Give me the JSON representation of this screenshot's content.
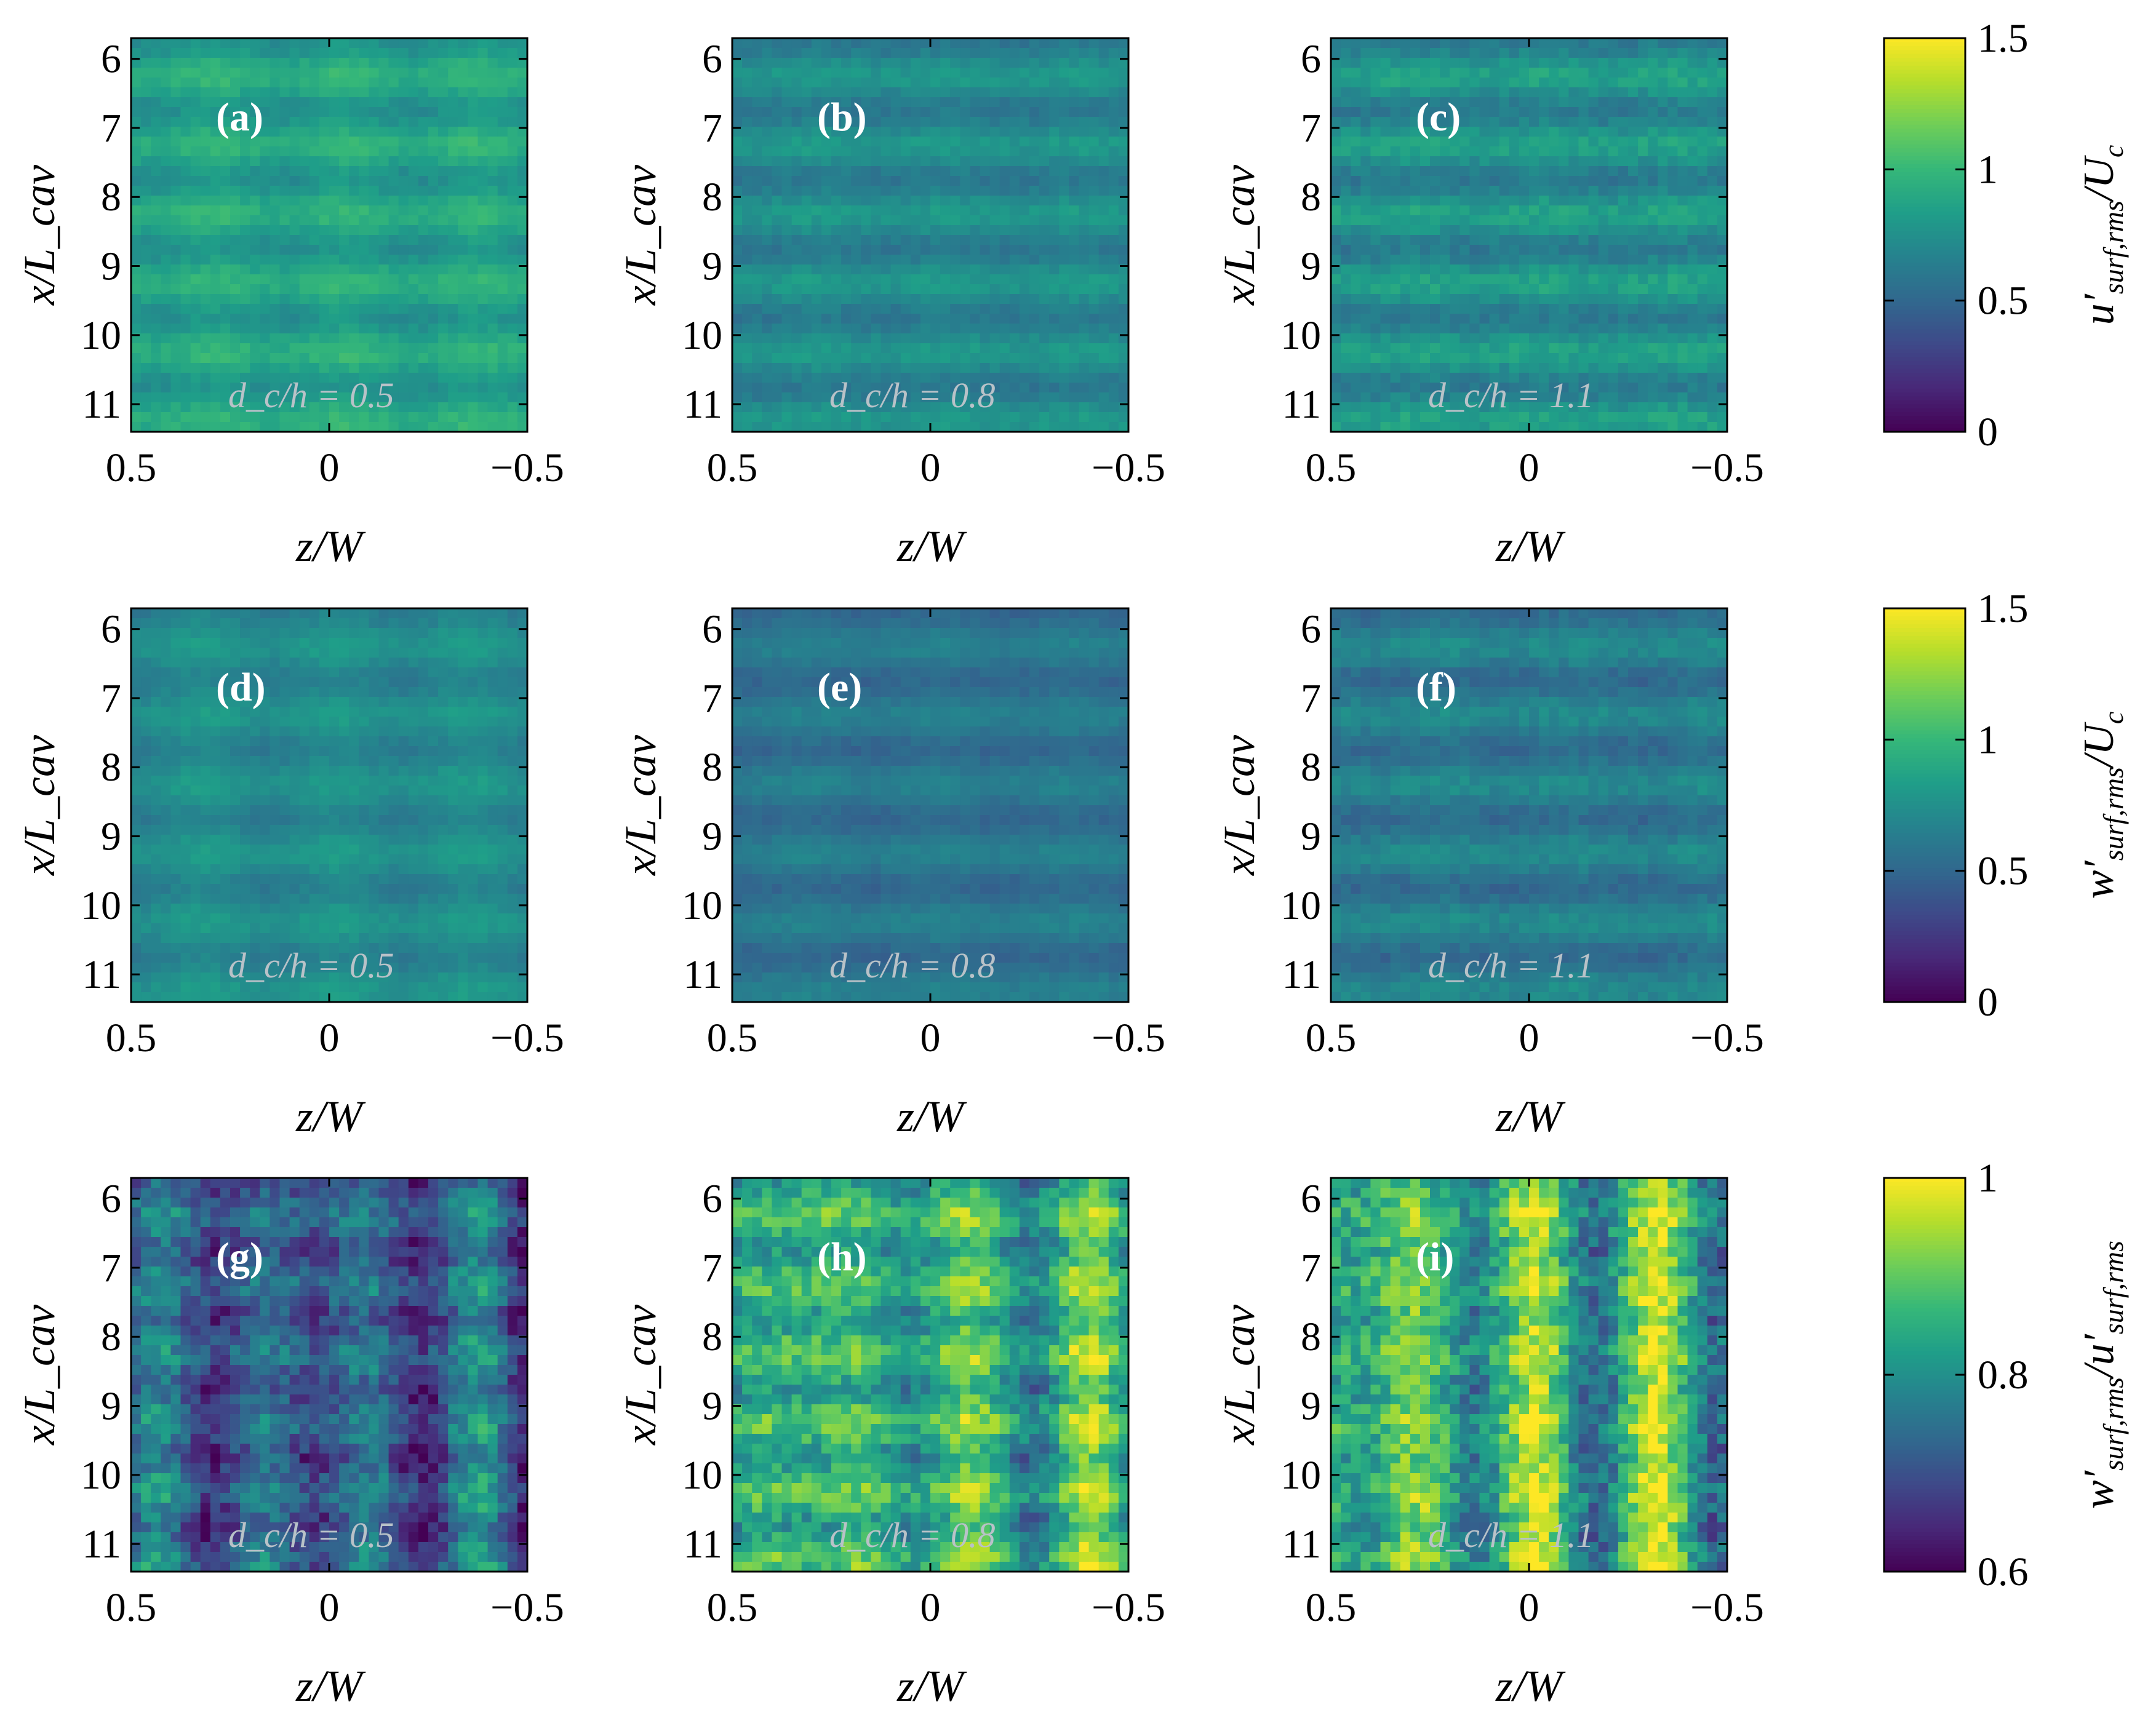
{
  "colors": {
    "viridis": [
      "#440154",
      "#482878",
      "#3e4989",
      "#31688e",
      "#26828e",
      "#1f9e89",
      "#35b779",
      "#6ece58",
      "#b5de2b",
      "#fde725"
    ]
  },
  "chart_data": [
    {
      "id": "a",
      "type": "heatmap",
      "letter": "(a)",
      "case_label": "d_c/h = 0.5",
      "dc_over_h": 0.5,
      "quantity": "u'_surf,rms/U_c",
      "row": 0,
      "col": 0,
      "base": 0.86,
      "bands": 0.1,
      "cols_amp": 0.04,
      "stripes": 0.0,
      "noise": 0.05,
      "xlabel": "z/W",
      "ylabel": "x/L_cav",
      "xticks": [
        "0.5",
        "0",
        "−0.5"
      ],
      "yticks": [
        "6",
        "7",
        "8",
        "9",
        "10",
        "11"
      ],
      "xlim": [
        0.5,
        -0.5
      ],
      "ylim": [
        5.7,
        11.4
      ]
    },
    {
      "id": "b",
      "type": "heatmap",
      "letter": "(b)",
      "case_label": "d_c/h = 0.8",
      "dc_over_h": 0.8,
      "quantity": "u'_surf,rms/U_c",
      "row": 0,
      "col": 1,
      "base": 0.7,
      "bands": 0.1,
      "cols_amp": 0.02,
      "stripes": 0.0,
      "noise": 0.05,
      "xlabel": "z/W",
      "ylabel": "x/L_cav",
      "xticks": [
        "0.5",
        "0",
        "−0.5"
      ],
      "yticks": [
        "6",
        "7",
        "8",
        "9",
        "10",
        "11"
      ],
      "xlim": [
        0.5,
        -0.5
      ],
      "ylim": [
        5.7,
        11.4
      ]
    },
    {
      "id": "c",
      "type": "heatmap",
      "letter": "(c)",
      "case_label": "d_c/h = 1.1",
      "dc_over_h": 1.1,
      "quantity": "u'_surf,rms/U_c",
      "row": 0,
      "col": 2,
      "base": 0.74,
      "bands": 0.12,
      "cols_amp": 0.02,
      "stripes": 0.0,
      "noise": 0.07,
      "xlabel": "z/W",
      "ylabel": "x/L_cav",
      "xticks": [
        "0.5",
        "0",
        "−0.5"
      ],
      "yticks": [
        "6",
        "7",
        "8",
        "9",
        "10",
        "11"
      ],
      "xlim": [
        0.5,
        -0.5
      ],
      "ylim": [
        5.7,
        11.4
      ]
    },
    {
      "id": "d",
      "type": "heatmap",
      "letter": "(d)",
      "case_label": "d_c/h = 0.5",
      "dc_over_h": 0.5,
      "quantity": "w'_surf,rms/U_c",
      "row": 1,
      "col": 0,
      "base": 0.72,
      "bands": 0.07,
      "cols_amp": 0.04,
      "stripes": 0.0,
      "noise": 0.04,
      "xlabel": "z/W",
      "ylabel": "x/L_cav",
      "xticks": [
        "0.5",
        "0",
        "−0.5"
      ],
      "yticks": [
        "6",
        "7",
        "8",
        "9",
        "10",
        "11"
      ],
      "xlim": [
        0.5,
        -0.5
      ],
      "ylim": [
        5.7,
        11.4
      ]
    },
    {
      "id": "e",
      "type": "heatmap",
      "letter": "(e)",
      "case_label": "d_c/h = 0.8",
      "dc_over_h": 0.8,
      "quantity": "w'_surf,rms/U_c",
      "row": 1,
      "col": 1,
      "base": 0.58,
      "bands": 0.08,
      "cols_amp": 0.02,
      "stripes": 0.0,
      "noise": 0.04,
      "xlabel": "z/W",
      "ylabel": "x/L_cav",
      "xticks": [
        "0.5",
        "0",
        "−0.5"
      ],
      "yticks": [
        "6",
        "7",
        "8",
        "9",
        "10",
        "11"
      ],
      "xlim": [
        0.5,
        -0.5
      ],
      "ylim": [
        5.7,
        11.4
      ]
    },
    {
      "id": "f",
      "type": "heatmap",
      "letter": "(f)",
      "case_label": "d_c/h = 1.1",
      "dc_over_h": 1.1,
      "quantity": "w'_surf,rms/U_c",
      "row": 1,
      "col": 2,
      "base": 0.62,
      "bands": 0.1,
      "cols_amp": 0.02,
      "stripes": 0.0,
      "noise": 0.06,
      "xlabel": "z/W",
      "ylabel": "x/L_cav",
      "xticks": [
        "0.5",
        "0",
        "−0.5"
      ],
      "yticks": [
        "6",
        "7",
        "8",
        "9",
        "10",
        "11"
      ],
      "xlim": [
        0.5,
        -0.5
      ],
      "ylim": [
        5.7,
        11.4
      ]
    },
    {
      "id": "g",
      "type": "heatmap",
      "letter": "(g)",
      "case_label": "d_c/h = 0.5",
      "dc_over_h": 0.5,
      "quantity": "w'_surf,rms/u'_surf,rms",
      "row": 2,
      "col": 0,
      "base": 0.72,
      "bands": 0.03,
      "cols_amp": 0.05,
      "stripes": 0.1,
      "noise": 0.05,
      "xlabel": "z/W",
      "ylabel": "x/L_cav",
      "xticks": [
        "0.5",
        "0",
        "−0.5"
      ],
      "yticks": [
        "6",
        "7",
        "8",
        "9",
        "10",
        "11"
      ],
      "xlim": [
        0.5,
        -0.5
      ],
      "ylim": [
        5.7,
        11.4
      ]
    },
    {
      "id": "h",
      "type": "heatmap",
      "letter": "(h)",
      "case_label": "d_c/h = 0.8",
      "dc_over_h": 0.8,
      "quantity": "w'_surf,rms/u'_surf,rms",
      "row": 2,
      "col": 1,
      "base": 0.85,
      "bands": 0.04,
      "cols_amp": 0.05,
      "stripes": 0.06,
      "noise": 0.05,
      "xlabel": "z/W",
      "ylabel": "x/L_cav",
      "xticks": [
        "0.5",
        "0",
        "−0.5"
      ],
      "yticks": [
        "6",
        "7",
        "8",
        "9",
        "10",
        "11"
      ],
      "xlim": [
        0.5,
        -0.5
      ],
      "ylim": [
        5.7,
        11.4
      ]
    },
    {
      "id": "i",
      "type": "heatmap",
      "letter": "(i)",
      "case_label": "d_c/h = 1.1",
      "dc_over_h": 1.1,
      "quantity": "w'_surf,rms/u'_surf,rms",
      "row": 2,
      "col": 2,
      "base": 0.86,
      "bands": 0.02,
      "cols_amp": 0.06,
      "stripes": 0.08,
      "noise": 0.06,
      "xlabel": "z/W",
      "ylabel": "x/L_cav",
      "xticks": [
        "0.5",
        "0",
        "−0.5"
      ],
      "yticks": [
        "6",
        "7",
        "8",
        "9",
        "10",
        "11"
      ],
      "xlim": [
        0.5,
        -0.5
      ],
      "ylim": [
        5.7,
        11.4
      ]
    }
  ],
  "colorbars": [
    {
      "id": "cb1",
      "row": 0,
      "range": [
        0,
        1.5
      ],
      "ticks": [
        "0",
        "0.5",
        "1",
        "1.5"
      ],
      "label_main": "u",
      "label_sub": "surf,rms",
      "label_tail": "/U",
      "label_tail_sub": "c"
    },
    {
      "id": "cb2",
      "row": 1,
      "range": [
        0,
        1.5
      ],
      "ticks": [
        "0",
        "0.5",
        "1",
        "1.5"
      ],
      "label_main": "w",
      "label_sub": "surf,rms",
      "label_tail": "/U",
      "label_tail_sub": "c"
    },
    {
      "id": "cb3",
      "row": 2,
      "range": [
        0.6,
        1.0
      ],
      "ticks": [
        "0.6",
        "0.8",
        "1"
      ],
      "label_main": "w",
      "label_sub": "surf,rms",
      "label_tail": "/u",
      "label_tail_sub": "surf,rms"
    }
  ]
}
